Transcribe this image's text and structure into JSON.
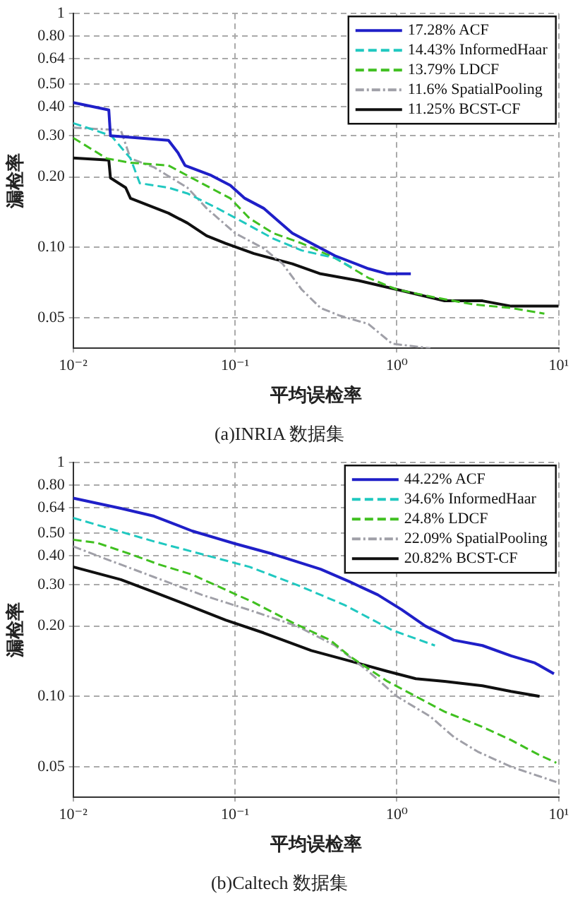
{
  "chart_data": [
    {
      "type": "line",
      "title": "(a)INRIA 数据集",
      "xlabel": "平均误检率",
      "ylabel": "漏检率",
      "log": "xy",
      "grid": true,
      "legend": "top right",
      "marker": "none",
      "xlim": [
        0.01,
        10
      ],
      "xticks": [
        {
          "value": 0.01,
          "label": "10⁻²"
        },
        {
          "value": 0.1,
          "label": "10⁻¹"
        },
        {
          "value": 1,
          "label": "10⁰"
        },
        {
          "value": 10,
          "label": "10¹"
        }
      ],
      "ylim": [
        0.037,
        1
      ],
      "yticks": [
        0.05,
        {
          "value": 0.1,
          "label": "0.10"
        },
        {
          "value": 0.2,
          "label": "0.20"
        },
        {
          "value": 0.3,
          "label": "0.30"
        },
        {
          "value": 0.4,
          "label": "0.40"
        },
        {
          "value": 0.5,
          "label": "0.50"
        },
        0.64,
        {
          "value": 0.8,
          "label": "0.80"
        },
        1
      ],
      "series": [
        {
          "name": "17.28% ACF",
          "color": "#1f1fc8",
          "line_style": "solid",
          "x": [
            0.01,
            0.0166,
            0.017,
            0.0388,
            0.0444,
            0.0491,
            0.0713,
            0.0935,
            0.115,
            0.15,
            0.184,
            0.226,
            0.296,
            0.415,
            0.667,
            0.873,
            1.22
          ],
          "values": [
            0.416,
            0.387,
            0.3,
            0.287,
            0.254,
            0.224,
            0.203,
            0.184,
            0.162,
            0.147,
            0.13,
            0.115,
            0.104,
            0.092,
            0.081,
            0.077,
            0.077
          ]
        },
        {
          "name": "14.43% InformedHaar",
          "color": "#20c8c0",
          "line_style": "dashed",
          "x": [
            0.01,
            0.0172,
            0.0226,
            0.0258,
            0.0388,
            0.0508,
            0.0762,
            0.115,
            0.172,
            0.258,
            0.415,
            0.543
          ],
          "values": [
            0.34,
            0.3,
            0.24,
            0.188,
            0.18,
            0.17,
            0.148,
            0.127,
            0.109,
            0.097,
            0.09,
            0.081
          ]
        },
        {
          "name": "13.79% LDCF",
          "color": "#40c020",
          "line_style": "dashed",
          "x": [
            0.01,
            0.0161,
            0.0226,
            0.0388,
            0.0622,
            0.0935,
            0.123,
            0.172,
            0.258,
            0.415,
            0.667,
            1,
            1.72,
            2.96,
            5.08,
            8.16
          ],
          "values": [
            0.294,
            0.24,
            0.23,
            0.224,
            0.188,
            0.162,
            0.133,
            0.115,
            0.104,
            0.09,
            0.074,
            0.066,
            0.061,
            0.057,
            0.055,
            0.052
          ]
        },
        {
          "name": "11.6% SpatialPooling",
          "color": "#a0a0a8",
          "line_style": "dashdot",
          "x": [
            0.01,
            0.0197,
            0.0226,
            0.0316,
            0.0508,
            0.0667,
            0.1,
            0.15,
            0.197,
            0.258,
            0.338,
            0.444,
            0.667,
            0.935,
            1.61
          ],
          "values": [
            0.325,
            0.317,
            0.24,
            0.22,
            0.18,
            0.147,
            0.115,
            0.099,
            0.085,
            0.066,
            0.055,
            0.051,
            0.047,
            0.0387,
            0.037
          ]
        },
        {
          "name": "11.25% BCST-CF",
          "color": "#101010",
          "line_style": "solid",
          "x": [
            0.01,
            0.0166,
            0.017,
            0.0211,
            0.0226,
            0.0388,
            0.0508,
            0.0667,
            0.0873,
            0.131,
            0.226,
            0.338,
            0.582,
            1,
            1.97,
            3.38,
            5.08,
            10
          ],
          "values": [
            0.241,
            0.236,
            0.198,
            0.18,
            0.162,
            0.14,
            0.127,
            0.112,
            0.104,
            0.094,
            0.085,
            0.077,
            0.072,
            0.066,
            0.059,
            0.059,
            0.056,
            0.056
          ]
        }
      ]
    },
    {
      "type": "line",
      "title": "(b)Caltech 数据集",
      "xlabel": "平均误检率",
      "ylabel": "漏检率",
      "log": "xy",
      "grid": true,
      "legend": "top right",
      "marker": "none",
      "xlim": [
        0.01,
        10
      ],
      "xticks": [
        {
          "value": 0.01,
          "label": "10⁻²"
        },
        {
          "value": 0.1,
          "label": "10⁻¹"
        },
        {
          "value": 1,
          "label": "10⁰"
        },
        {
          "value": 10,
          "label": "10¹"
        }
      ],
      "ylim": [
        0.037,
        1
      ],
      "yticks": [
        0.05,
        {
          "value": 0.1,
          "label": "0.10"
        },
        {
          "value": 0.2,
          "label": "0.20"
        },
        {
          "value": 0.3,
          "label": "0.30"
        },
        {
          "value": 0.4,
          "label": "0.40"
        },
        {
          "value": 0.5,
          "label": "0.50"
        },
        0.64,
        {
          "value": 0.8,
          "label": "0.80"
        },
        1
      ],
      "series": [
        {
          "name": "44.22% ACF",
          "color": "#1f1fc8",
          "line_style": "solid",
          "x": [
            0.01,
            0.0197,
            0.0316,
            0.0543,
            0.1,
            0.172,
            0.338,
            0.508,
            0.762,
            1.07,
            1.5,
            2.25,
            3.38,
            5.08,
            7.13,
            9.35
          ],
          "values": [
            0.705,
            0.637,
            0.59,
            0.51,
            0.45,
            0.406,
            0.35,
            0.31,
            0.272,
            0.235,
            0.2,
            0.174,
            0.165,
            0.149,
            0.139,
            0.125
          ]
        },
        {
          "name": "34.6% InformedHaar",
          "color": "#20c8c0",
          "line_style": "dashed",
          "x": [
            0.01,
            0.0172,
            0.0316,
            0.0622,
            0.123,
            0.241,
            0.475,
            0.935,
            1.72
          ],
          "values": [
            0.58,
            0.52,
            0.46,
            0.406,
            0.358,
            0.3,
            0.246,
            0.192,
            0.165
          ]
        },
        {
          "name": "24.8% LDCF",
          "color": "#40c020",
          "line_style": "dashed",
          "x": [
            0.01,
            0.014,
            0.0226,
            0.0338,
            0.0543,
            0.0873,
            0.131,
            0.226,
            0.388,
            0.508,
            0.873,
            1.31,
            1.97,
            3.38,
            5.08,
            7.62,
            9.67
          ],
          "values": [
            0.468,
            0.454,
            0.406,
            0.367,
            0.332,
            0.286,
            0.252,
            0.207,
            0.174,
            0.149,
            0.116,
            0.1,
            0.086,
            0.074,
            0.065,
            0.056,
            0.052
          ]
        },
        {
          "name": "22.09% SpatialPooling",
          "color": "#a0a0a8",
          "line_style": "dashdot",
          "x": [
            0.01,
            0.0161,
            0.0316,
            0.0622,
            0.123,
            0.241,
            0.415,
            0.667,
            1,
            1.61,
            2.25,
            3.16,
            5.08,
            9.67
          ],
          "values": [
            0.438,
            0.386,
            0.324,
            0.272,
            0.234,
            0.2,
            0.165,
            0.128,
            0.1,
            0.082,
            0.067,
            0.058,
            0.05,
            0.043
          ]
        },
        {
          "name": "20.82% BCST-CF",
          "color": "#101010",
          "line_style": "solid",
          "x": [
            0.01,
            0.0197,
            0.0316,
            0.0508,
            0.0873,
            0.15,
            0.296,
            0.508,
            0.873,
            1.31,
            1.97,
            3.38,
            5.08,
            7.62
          ],
          "values": [
            0.358,
            0.316,
            0.279,
            0.246,
            0.212,
            0.187,
            0.157,
            0.142,
            0.128,
            0.119,
            0.116,
            0.111,
            0.105,
            0.1
          ]
        }
      ]
    }
  ]
}
